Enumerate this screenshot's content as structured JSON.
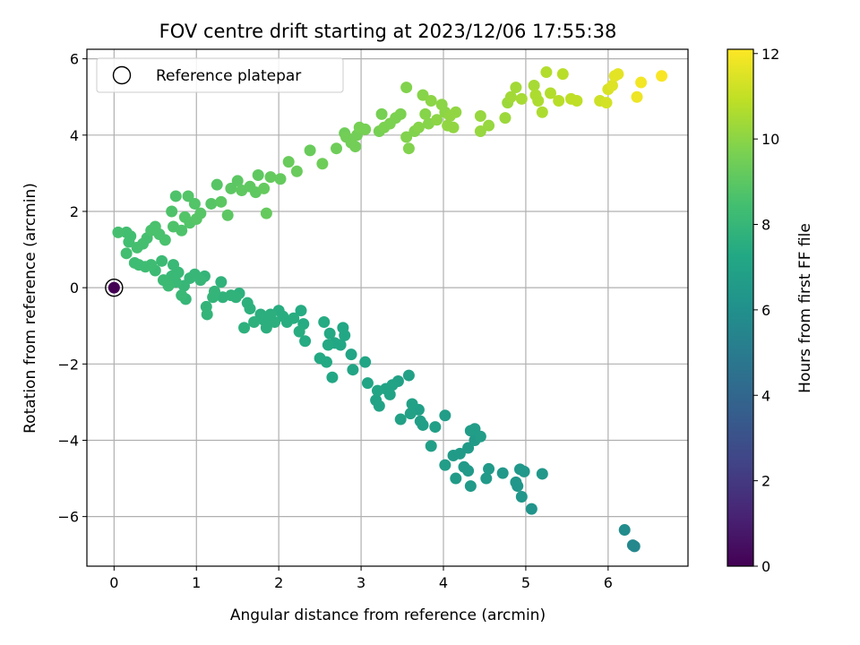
{
  "chart_data": {
    "type": "scatter",
    "title": "FOV centre drift starting at 2023/12/06 17:55:38",
    "xlabel": "Angular distance from reference (arcmin)",
    "ylabel": "Rotation from reference (arcmin)",
    "xlim": [
      -0.33,
      6.97
    ],
    "ylim": [
      -7.3,
      6.25
    ],
    "xticks": [
      0,
      1,
      2,
      3,
      4,
      5,
      6
    ],
    "yticks": [
      -6,
      -4,
      -2,
      0,
      2,
      4,
      6
    ],
    "xtick_labels": [
      "0",
      "1",
      "2",
      "3",
      "4",
      "5",
      "6"
    ],
    "ytick_labels": [
      "−6",
      "−4",
      "−2",
      "0",
      "2",
      "4",
      "6"
    ],
    "grid": true,
    "legend": {
      "position": "top-left",
      "entries": [
        {
          "label": "Reference platepar",
          "marker": "open-circle"
        }
      ]
    },
    "colorbar": {
      "label": "Hours from first FF file",
      "colormap": "viridis",
      "range": [
        0,
        12.1
      ],
      "ticks": [
        0,
        2,
        4,
        6,
        8,
        10,
        12
      ],
      "tick_labels": [
        "0",
        "2",
        "4",
        "6",
        "8",
        "10",
        "12"
      ]
    },
    "reference_point": {
      "x": 0,
      "y": 0,
      "hours": 0
    },
    "series": [
      {
        "fields": [
          "x",
          "y",
          "hours"
        ],
        "points": [
          [
            6.3,
            -6.75,
            5.6
          ],
          [
            6.32,
            -6.78,
            5.6
          ],
          [
            6.2,
            -6.35,
            5.8
          ],
          [
            5.07,
            -5.8,
            6.2
          ],
          [
            4.95,
            -5.48,
            6.3
          ],
          [
            4.9,
            -5.2,
            6.3
          ],
          [
            4.88,
            -5.1,
            6.3
          ],
          [
            4.93,
            -4.76,
            6.4
          ],
          [
            4.98,
            -4.82,
            6.4
          ],
          [
            5.2,
            -4.88,
            6.4
          ],
          [
            4.72,
            -4.86,
            6.4
          ],
          [
            4.55,
            -4.75,
            6.5
          ],
          [
            4.52,
            -5.0,
            6.5
          ],
          [
            4.33,
            -5.2,
            6.5
          ],
          [
            4.3,
            -4.8,
            6.5
          ],
          [
            4.25,
            -4.7,
            6.5
          ],
          [
            4.15,
            -5.0,
            6.6
          ],
          [
            4.12,
            -4.4,
            6.6
          ],
          [
            4.2,
            -4.35,
            6.6
          ],
          [
            4.3,
            -4.2,
            6.6
          ],
          [
            4.38,
            -4.0,
            6.6
          ],
          [
            4.45,
            -3.9,
            6.7
          ],
          [
            4.33,
            -3.75,
            6.7
          ],
          [
            4.38,
            -3.7,
            6.7
          ],
          [
            4.02,
            -4.65,
            6.7
          ],
          [
            4.02,
            -3.35,
            6.7
          ],
          [
            3.9,
            -3.65,
            6.8
          ],
          [
            3.85,
            -4.15,
            6.8
          ],
          [
            3.75,
            -3.6,
            6.8
          ],
          [
            3.72,
            -3.5,
            6.8
          ],
          [
            3.7,
            -3.2,
            6.8
          ],
          [
            3.62,
            -3.05,
            6.9
          ],
          [
            3.6,
            -3.3,
            6.9
          ],
          [
            3.58,
            -2.3,
            6.9
          ],
          [
            3.48,
            -3.45,
            6.9
          ],
          [
            3.45,
            -2.45,
            6.9
          ],
          [
            3.38,
            -2.55,
            7.0
          ],
          [
            3.35,
            -2.8,
            7.0
          ],
          [
            3.3,
            -2.65,
            7.0
          ],
          [
            3.22,
            -3.1,
            7.0
          ],
          [
            3.18,
            -2.95,
            7.0
          ],
          [
            3.2,
            -2.7,
            7.1
          ],
          [
            3.08,
            -2.5,
            7.1
          ],
          [
            3.05,
            -1.95,
            7.1
          ],
          [
            2.9,
            -2.15,
            7.1
          ],
          [
            2.88,
            -1.75,
            7.1
          ],
          [
            2.8,
            -1.25,
            7.2
          ],
          [
            2.78,
            -1.05,
            7.2
          ],
          [
            2.75,
            -1.5,
            7.2
          ],
          [
            2.65,
            -2.35,
            7.2
          ],
          [
            2.68,
            -1.45,
            7.2
          ],
          [
            2.58,
            -1.95,
            7.3
          ],
          [
            2.5,
            -1.85,
            7.3
          ],
          [
            2.6,
            -1.5,
            7.3
          ],
          [
            2.62,
            -1.2,
            7.3
          ],
          [
            2.55,
            -0.9,
            7.4
          ],
          [
            2.3,
            -0.95,
            7.4
          ],
          [
            2.32,
            -1.4,
            7.4
          ],
          [
            2.27,
            -0.6,
            7.4
          ],
          [
            2.25,
            -1.15,
            7.5
          ],
          [
            2.18,
            -0.8,
            7.5
          ],
          [
            2.1,
            -0.9,
            7.5
          ],
          [
            2.05,
            -0.75,
            7.5
          ],
          [
            2.0,
            -0.6,
            7.5
          ],
          [
            1.95,
            -0.9,
            7.6
          ],
          [
            1.9,
            -0.7,
            7.6
          ],
          [
            1.85,
            -1.05,
            7.6
          ],
          [
            1.82,
            -0.85,
            7.6
          ],
          [
            1.78,
            -0.7,
            7.6
          ],
          [
            1.7,
            -0.9,
            7.7
          ],
          [
            1.62,
            -0.4,
            7.7
          ],
          [
            1.65,
            -0.55,
            7.7
          ],
          [
            1.58,
            -1.05,
            7.7
          ],
          [
            1.52,
            -0.15,
            7.7
          ],
          [
            1.48,
            -0.25,
            7.8
          ],
          [
            1.42,
            -0.2,
            7.8
          ],
          [
            1.32,
            -0.25,
            7.8
          ],
          [
            1.3,
            0.15,
            7.8
          ],
          [
            1.22,
            -0.1,
            7.9
          ],
          [
            1.2,
            -0.25,
            7.9
          ],
          [
            1.13,
            -0.7,
            7.9
          ],
          [
            1.12,
            -0.5,
            7.9
          ],
          [
            1.1,
            0.3,
            7.9
          ],
          [
            1.05,
            0.2,
            8.0
          ],
          [
            0.98,
            0.35,
            8.0
          ],
          [
            0.92,
            0.25,
            8.0
          ],
          [
            0.85,
            0.05,
            8.0
          ],
          [
            0.87,
            -0.3,
            8.0
          ],
          [
            0.82,
            -0.2,
            8.1
          ],
          [
            0.78,
            0.4,
            8.1
          ],
          [
            0.75,
            0.15,
            8.1
          ],
          [
            0.72,
            0.6,
            8.1
          ],
          [
            0.7,
            0.3,
            8.1
          ],
          [
            0.66,
            0.05,
            8.2
          ],
          [
            0.6,
            0.2,
            8.2
          ],
          [
            0.58,
            0.7,
            8.2
          ],
          [
            0.5,
            0.45,
            8.2
          ],
          [
            0.45,
            0.6,
            8.3
          ],
          [
            0.38,
            0.55,
            8.3
          ],
          [
            0.3,
            0.6,
            8.3
          ],
          [
            0.25,
            0.65,
            8.3
          ],
          [
            0.15,
            0.9,
            8.4
          ],
          [
            0.18,
            1.2,
            8.4
          ],
          [
            0.2,
            1.35,
            8.4
          ],
          [
            0.15,
            1.45,
            8.4
          ],
          [
            0.05,
            1.45,
            8.5
          ],
          [
            0.28,
            1.05,
            8.5
          ],
          [
            0.35,
            1.15,
            8.5
          ],
          [
            0.4,
            1.3,
            8.5
          ],
          [
            0.45,
            1.5,
            8.6
          ],
          [
            0.5,
            1.6,
            8.6
          ],
          [
            0.55,
            1.4,
            8.6
          ],
          [
            0.62,
            1.25,
            8.6
          ],
          [
            0.7,
            2.0,
            8.7
          ],
          [
            0.72,
            1.6,
            8.7
          ],
          [
            0.75,
            2.4,
            8.7
          ],
          [
            0.82,
            1.5,
            8.7
          ],
          [
            0.86,
            1.85,
            8.8
          ],
          [
            0.9,
            2.4,
            8.8
          ],
          [
            0.92,
            1.7,
            8.8
          ],
          [
            0.98,
            2.2,
            8.8
          ],
          [
            1.0,
            1.8,
            8.9
          ],
          [
            1.05,
            1.95,
            8.9
          ],
          [
            1.18,
            2.2,
            8.9
          ],
          [
            1.25,
            2.7,
            8.9
          ],
          [
            1.3,
            2.25,
            9.0
          ],
          [
            1.38,
            1.9,
            9.0
          ],
          [
            1.42,
            2.6,
            9.0
          ],
          [
            1.5,
            2.8,
            9.0
          ],
          [
            1.55,
            2.55,
            9.1
          ],
          [
            1.65,
            2.65,
            9.1
          ],
          [
            1.72,
            2.5,
            9.1
          ],
          [
            1.75,
            2.95,
            9.1
          ],
          [
            1.82,
            2.6,
            9.2
          ],
          [
            1.85,
            1.95,
            9.2
          ],
          [
            1.9,
            2.9,
            9.2
          ],
          [
            2.02,
            2.85,
            9.2
          ],
          [
            2.12,
            3.3,
            9.3
          ],
          [
            2.22,
            3.05,
            9.3
          ],
          [
            2.38,
            3.6,
            9.3
          ],
          [
            2.53,
            3.25,
            9.4
          ],
          [
            2.7,
            3.65,
            9.4
          ],
          [
            2.8,
            4.05,
            9.4
          ],
          [
            2.82,
            3.95,
            9.5
          ],
          [
            2.88,
            3.8,
            9.5
          ],
          [
            2.93,
            3.7,
            9.5
          ],
          [
            2.95,
            4.0,
            9.5
          ],
          [
            2.98,
            4.2,
            9.6
          ],
          [
            3.05,
            4.15,
            9.6
          ],
          [
            3.22,
            4.1,
            9.6
          ],
          [
            3.25,
            4.55,
            9.6
          ],
          [
            3.28,
            4.2,
            9.7
          ],
          [
            3.35,
            4.3,
            9.7
          ],
          [
            3.42,
            4.45,
            9.7
          ],
          [
            3.48,
            4.55,
            9.7
          ],
          [
            3.55,
            5.25,
            9.8
          ],
          [
            3.55,
            3.95,
            9.8
          ],
          [
            3.58,
            3.65,
            9.8
          ],
          [
            3.65,
            4.1,
            9.8
          ],
          [
            3.7,
            4.2,
            9.9
          ],
          [
            3.75,
            5.05,
            9.9
          ],
          [
            3.78,
            4.55,
            9.9
          ],
          [
            3.82,
            4.3,
            9.9
          ],
          [
            3.85,
            4.9,
            10.0
          ],
          [
            3.92,
            4.4,
            10.0
          ],
          [
            3.98,
            4.8,
            10.0
          ],
          [
            4.02,
            4.6,
            10.0
          ],
          [
            4.05,
            4.25,
            10.1
          ],
          [
            4.08,
            4.5,
            10.1
          ],
          [
            4.12,
            4.2,
            10.1
          ],
          [
            4.15,
            4.6,
            10.1
          ],
          [
            4.45,
            4.5,
            10.2
          ],
          [
            4.45,
            4.1,
            10.2
          ],
          [
            4.55,
            4.25,
            10.2
          ],
          [
            4.75,
            4.45,
            10.3
          ],
          [
            4.78,
            4.85,
            10.3
          ],
          [
            4.82,
            5.0,
            10.4
          ],
          [
            4.88,
            5.25,
            10.4
          ],
          [
            4.95,
            4.95,
            10.5
          ],
          [
            5.1,
            5.3,
            10.5
          ],
          [
            5.12,
            5.05,
            10.6
          ],
          [
            5.15,
            4.9,
            10.6
          ],
          [
            5.2,
            4.6,
            10.6
          ],
          [
            5.25,
            5.65,
            10.7
          ],
          [
            5.3,
            5.1,
            10.7
          ],
          [
            5.4,
            4.9,
            10.8
          ],
          [
            5.45,
            5.6,
            10.8
          ],
          [
            5.55,
            4.95,
            10.9
          ],
          [
            5.62,
            4.9,
            10.9
          ],
          [
            5.9,
            4.9,
            11.2
          ],
          [
            5.98,
            4.85,
            11.3
          ],
          [
            6.0,
            5.2,
            11.4
          ],
          [
            6.05,
            5.3,
            11.5
          ],
          [
            6.08,
            5.55,
            11.6
          ],
          [
            6.12,
            5.6,
            11.6
          ],
          [
            6.35,
            5.0,
            11.8
          ],
          [
            6.4,
            5.38,
            11.9
          ],
          [
            6.65,
            5.55,
            12.0
          ]
        ]
      }
    ]
  }
}
